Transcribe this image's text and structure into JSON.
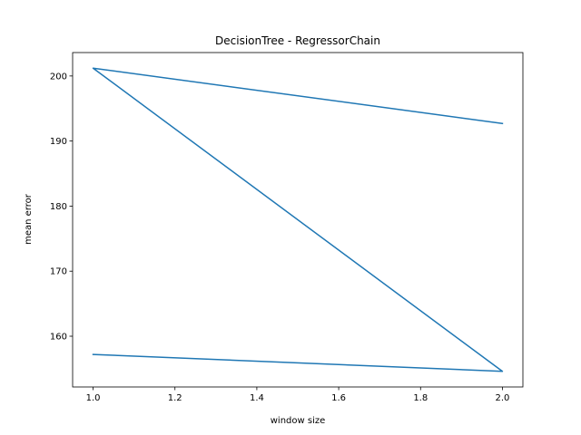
{
  "chart_data": {
    "type": "line",
    "title": "DecisionTree - RegressorChain",
    "xlabel": "window size",
    "ylabel": "mean error",
    "xlim": [
      0.95,
      2.05
    ],
    "ylim": [
      152.2,
      203.6
    ],
    "xticks": [
      1.0,
      1.2,
      1.4,
      1.6,
      1.8,
      2.0
    ],
    "xtick_labels": [
      "1.0",
      "1.2",
      "1.4",
      "1.6",
      "1.8",
      "2.0"
    ],
    "yticks": [
      160,
      170,
      180,
      190,
      200
    ],
    "ytick_labels": [
      "160",
      "170",
      "180",
      "190",
      "200"
    ],
    "grid": false,
    "series": [
      {
        "color": "#1f77b4",
        "x": [
          1.0,
          2.0,
          1.0,
          2.0
        ],
        "y": [
          157.2,
          154.6,
          201.2,
          192.7
        ]
      }
    ]
  }
}
